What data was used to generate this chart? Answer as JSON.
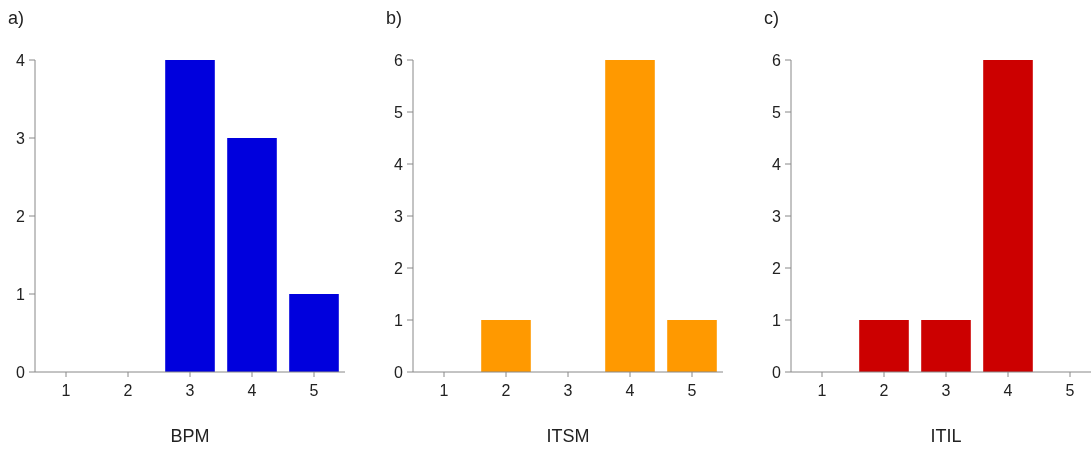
{
  "chart_data": [
    {
      "type": "bar",
      "title": "a)",
      "xlabel": "BPM",
      "categories": [
        "1",
        "2",
        "3",
        "4",
        "5"
      ],
      "values": [
        0,
        0,
        4,
        3,
        1
      ],
      "color": "#0000dd",
      "ylim": [
        0,
        4
      ],
      "yticks": [
        0,
        1,
        2,
        3,
        4
      ],
      "grid": false
    },
    {
      "type": "bar",
      "title": "b)",
      "xlabel": "ITSM",
      "categories": [
        "1",
        "2",
        "3",
        "4",
        "5"
      ],
      "values": [
        0,
        1,
        0,
        6,
        1
      ],
      "color": "#ff9900",
      "ylim": [
        0,
        6
      ],
      "yticks": [
        0,
        1,
        2,
        3,
        4,
        5,
        6
      ],
      "grid": false
    },
    {
      "type": "bar",
      "title": "c)",
      "xlabel": "ITIL",
      "categories": [
        "1",
        "2",
        "3",
        "4",
        "5"
      ],
      "values": [
        0,
        1,
        1,
        6,
        0
      ],
      "color": "#cc0000",
      "ylim": [
        0,
        6
      ],
      "yticks": [
        0,
        1,
        2,
        3,
        4,
        5,
        6
      ],
      "grid": false
    }
  ]
}
